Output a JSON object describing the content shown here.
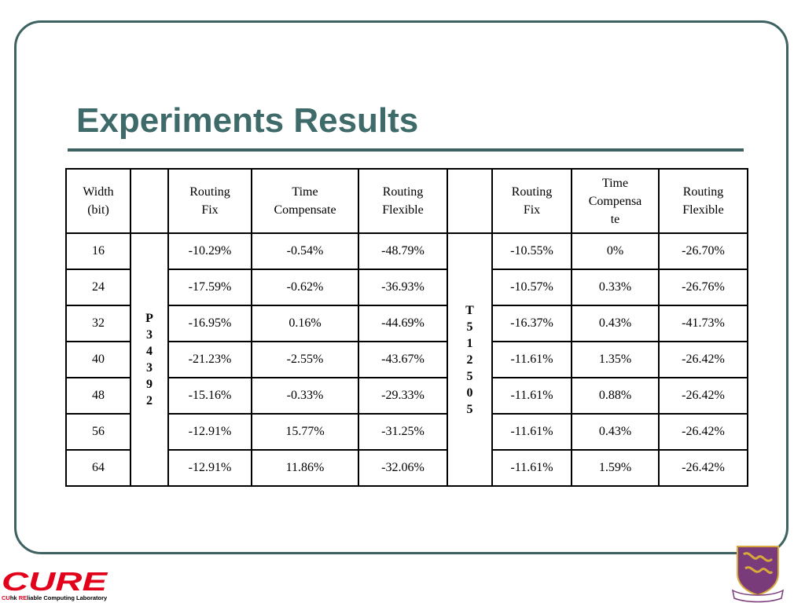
{
  "slide": {
    "title": "Experiments Results"
  },
  "table": {
    "headers": {
      "width": [
        "Width",
        "(bit)"
      ],
      "group1": [
        "Routing",
        "Fix",
        "Time",
        "Compensate",
        "Routing",
        "Flexible"
      ],
      "group2": [
        "Routing",
        "Fix",
        "Time",
        "Compensa",
        "te",
        "Routing",
        "Flexible"
      ]
    },
    "group1_label": [
      "P",
      "3",
      "4",
      "3",
      "9",
      "2"
    ],
    "group2_label": [
      "T",
      "5",
      "1",
      "2",
      "5",
      "0",
      "5"
    ],
    "rows": [
      {
        "width": "16",
        "g1": [
          "-10.29%",
          "-0.54%",
          "-48.79%"
        ],
        "g2": [
          "-10.55%",
          "0%",
          "-26.70%"
        ]
      },
      {
        "width": "24",
        "g1": [
          "-17.59%",
          "-0.62%",
          "-36.93%"
        ],
        "g2": [
          "-10.57%",
          "0.33%",
          "-26.76%"
        ]
      },
      {
        "width": "32",
        "g1": [
          "-16.95%",
          "0.16%",
          "-44.69%"
        ],
        "g2": [
          "-16.37%",
          "0.43%",
          "-41.73%"
        ]
      },
      {
        "width": "40",
        "g1": [
          "-21.23%",
          "-2.55%",
          "-43.67%"
        ],
        "g2": [
          "-11.61%",
          "1.35%",
          "-26.42%"
        ]
      },
      {
        "width": "48",
        "g1": [
          "-15.16%",
          "-0.33%",
          "-29.33%"
        ],
        "g2": [
          "-11.61%",
          "0.88%",
          "-26.42%"
        ]
      },
      {
        "width": "56",
        "g1": [
          "-12.91%",
          "15.77%",
          "-31.25%"
        ],
        "g2": [
          "-11.61%",
          "0.43%",
          "-26.42%"
        ]
      },
      {
        "width": "64",
        "g1": [
          "-12.91%",
          "11.86%",
          "-32.06%"
        ],
        "g2": [
          "-11.61%",
          "1.59%",
          "-26.42%"
        ]
      }
    ]
  },
  "footer": {
    "lab_logo_text": "CURE",
    "lab_name_prefix_1": "CU",
    "lab_name_prefix_2": "hk ",
    "lab_name_prefix_3": "RE",
    "lab_name_rest": "liable Computing Laboratory",
    "colors": {
      "red": "#e3001b",
      "frame": "#3e6161",
      "title": "#3f6a6a",
      "crest": "#7a3b7a",
      "crest_gold": "#d8a93a"
    },
    "icons": [
      "cure-logo-icon",
      "university-crest-icon"
    ]
  }
}
